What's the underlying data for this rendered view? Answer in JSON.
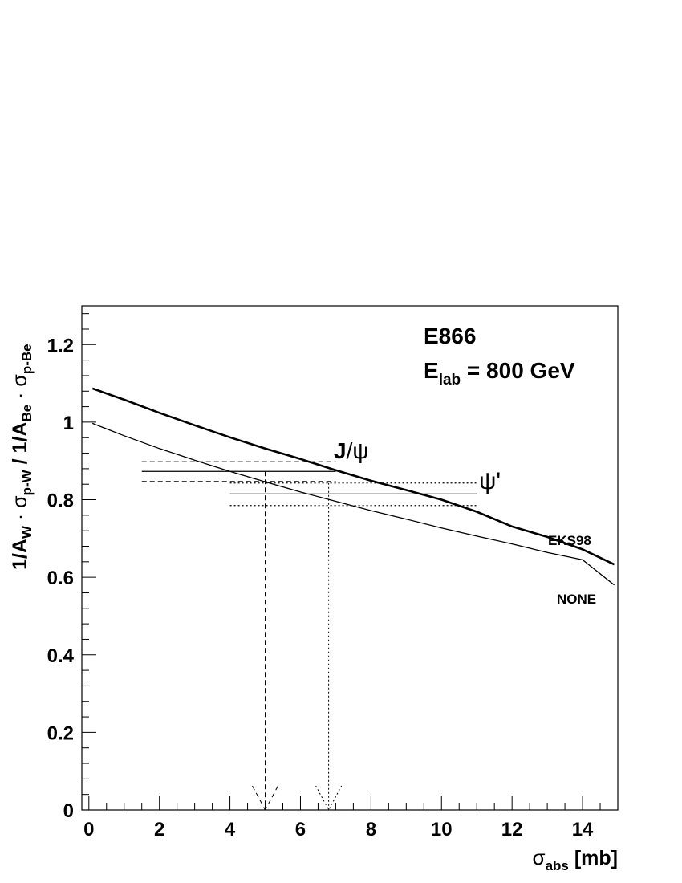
{
  "chart_data": {
    "type": "line",
    "title": "E866",
    "subtitle": "E<sub>lab</sub> = 800 GeV",
    "ylabel": "1/A_W · σ_p-W / 1/A_Be · σ_p-Be",
    "xlabel": "σ_abs [mb]",
    "xlim": [
      -0.2,
      15.0
    ],
    "ylim": [
      0,
      1.3
    ],
    "xticks": [
      0,
      2,
      4,
      6,
      8,
      10,
      12,
      14
    ],
    "xtick_labels": [
      "0",
      "2",
      "4",
      "6",
      "8",
      "10",
      "12",
      "14"
    ],
    "yticks": [
      0,
      0.2,
      0.4,
      0.6,
      0.8,
      1.0,
      1.2
    ],
    "ytick_labels": [
      "0",
      "0.2",
      "0.4",
      "0.6",
      "0.8",
      "1",
      "1.2"
    ],
    "grid": false,
    "series": [
      {
        "name": "EKS98",
        "style": "thick",
        "x": [
          0.1,
          1,
          2,
          3,
          4,
          5,
          6,
          7,
          8,
          9,
          10,
          11,
          12,
          13,
          14,
          14.9
        ],
        "y": [
          1.087,
          1.058,
          1.024,
          0.992,
          0.961,
          0.932,
          0.905,
          0.876,
          0.849,
          0.825,
          0.8,
          0.769,
          0.731,
          0.704,
          0.672,
          0.633
        ]
      },
      {
        "name": "NONE",
        "style": "thin",
        "x": [
          0.1,
          1,
          2,
          3,
          4,
          5,
          6,
          7,
          8,
          9,
          10,
          11,
          12,
          13,
          14,
          14.9
        ],
        "y": [
          0.997,
          0.965,
          0.932,
          0.902,
          0.873,
          0.846,
          0.82,
          0.796,
          0.772,
          0.75,
          0.727,
          0.706,
          0.686,
          0.664,
          0.645,
          0.58
        ]
      }
    ],
    "bands": [
      {
        "name": "J/ψ",
        "x_range": [
          1.5,
          7.0
        ],
        "central": 0.873,
        "upper": 0.898,
        "lower": 0.847,
        "central_style": "solid",
        "error_style": "dashed"
      },
      {
        "name": "ψ'",
        "x_range": [
          4.0,
          11.0
        ],
        "central": 0.815,
        "upper": 0.843,
        "lower": 0.785,
        "central_style": "solid",
        "error_style": "dotted"
      }
    ],
    "arrows": [
      {
        "name": "J/ψ",
        "x": 5.0,
        "y_from": 0.873,
        "style": "dashed"
      },
      {
        "name": "ψ'",
        "x": 6.8,
        "y_from": 0.843,
        "style": "dotted"
      }
    ]
  }
}
